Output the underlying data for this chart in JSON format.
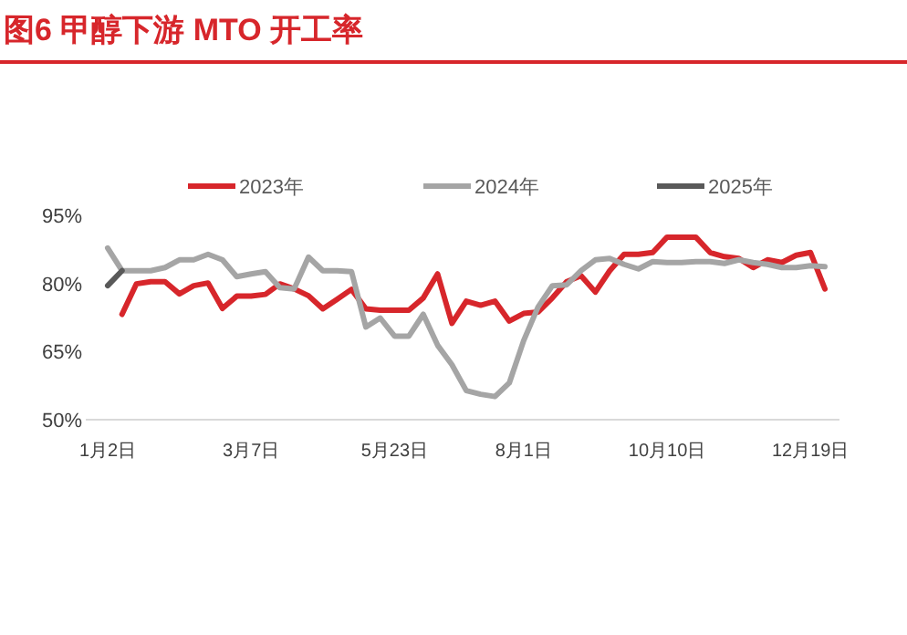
{
  "chart_data": {
    "type": "line",
    "title": "图6  甲醇下游 MTO 开工率",
    "categories": [
      "1月2日",
      null,
      null,
      null,
      null,
      null,
      null,
      null,
      null,
      null,
      "3月7日",
      null,
      null,
      null,
      null,
      null,
      null,
      null,
      null,
      null,
      "5月23日",
      null,
      null,
      null,
      null,
      null,
      null,
      null,
      null,
      "8月1日",
      null,
      null,
      null,
      null,
      null,
      null,
      null,
      null,
      null,
      "10月10日",
      null,
      null,
      null,
      null,
      null,
      null,
      null,
      null,
      null,
      "12月19日",
      null
    ],
    "ylim": [
      50,
      95
    ],
    "yticks": [
      {
        "value": 50,
        "label": "50%"
      },
      {
        "value": 65,
        "label": "65%"
      },
      {
        "value": 80,
        "label": "80%"
      },
      {
        "value": 95,
        "label": "95%"
      }
    ],
    "grid": false,
    "legend": "top",
    "marker": "none",
    "line_style": "solid",
    "series": [
      {
        "name": "2023年",
        "color": "#d7262b",
        "values": [
          null,
          73.2,
          79.9,
          80.4,
          80.4,
          77.7,
          79.5,
          80.1,
          74.5,
          77.2,
          77.2,
          77.6,
          79.9,
          78.8,
          77.3,
          74.4,
          76.5,
          78.7,
          74.4,
          74.1,
          74.1,
          74.1,
          76.8,
          82.1,
          71.2,
          76.1,
          75.2,
          76.1,
          71.7,
          73.4,
          73.7,
          76.8,
          80.4,
          81.7,
          78.1,
          82.8,
          86.4,
          86.4,
          86.8,
          90.2,
          90.2,
          90.2,
          86.8,
          85.9,
          85.5,
          83.5,
          85.2,
          84.6,
          86.2,
          86.8,
          78.8
        ]
      },
      {
        "name": "2024年",
        "color": "#a5a5a5",
        "values": [
          87.8,
          82.8,
          82.8,
          82.8,
          83.5,
          85.2,
          85.2,
          86.4,
          85.2,
          81.5,
          82.1,
          82.6,
          79.1,
          78.8,
          85.8,
          82.8,
          82.8,
          82.6,
          70.4,
          72.4,
          68.4,
          68.4,
          73.2,
          66.4,
          62.1,
          56.4,
          55.6,
          55.1,
          58.1,
          67.4,
          74.8,
          79.5,
          79.7,
          82.8,
          85.2,
          85.5,
          84.2,
          83.2,
          84.8,
          84.6,
          84.6,
          84.8,
          84.8,
          84.4,
          85.2,
          84.6,
          84.2,
          83.5,
          83.5,
          83.9,
          83.7
        ]
      },
      {
        "name": "2025年",
        "color": "#595959",
        "values": [
          79.5,
          82.8,
          null,
          null,
          null,
          null,
          null,
          null,
          null,
          null,
          null,
          null,
          null,
          null,
          null,
          null,
          null,
          null,
          null,
          null,
          null,
          null,
          null,
          null,
          null,
          null,
          null,
          null,
          null,
          null,
          null,
          null,
          null,
          null,
          null,
          null,
          null,
          null,
          null,
          null,
          null,
          null,
          null,
          null,
          null,
          null,
          null,
          null,
          null,
          null,
          null
        ]
      }
    ]
  }
}
